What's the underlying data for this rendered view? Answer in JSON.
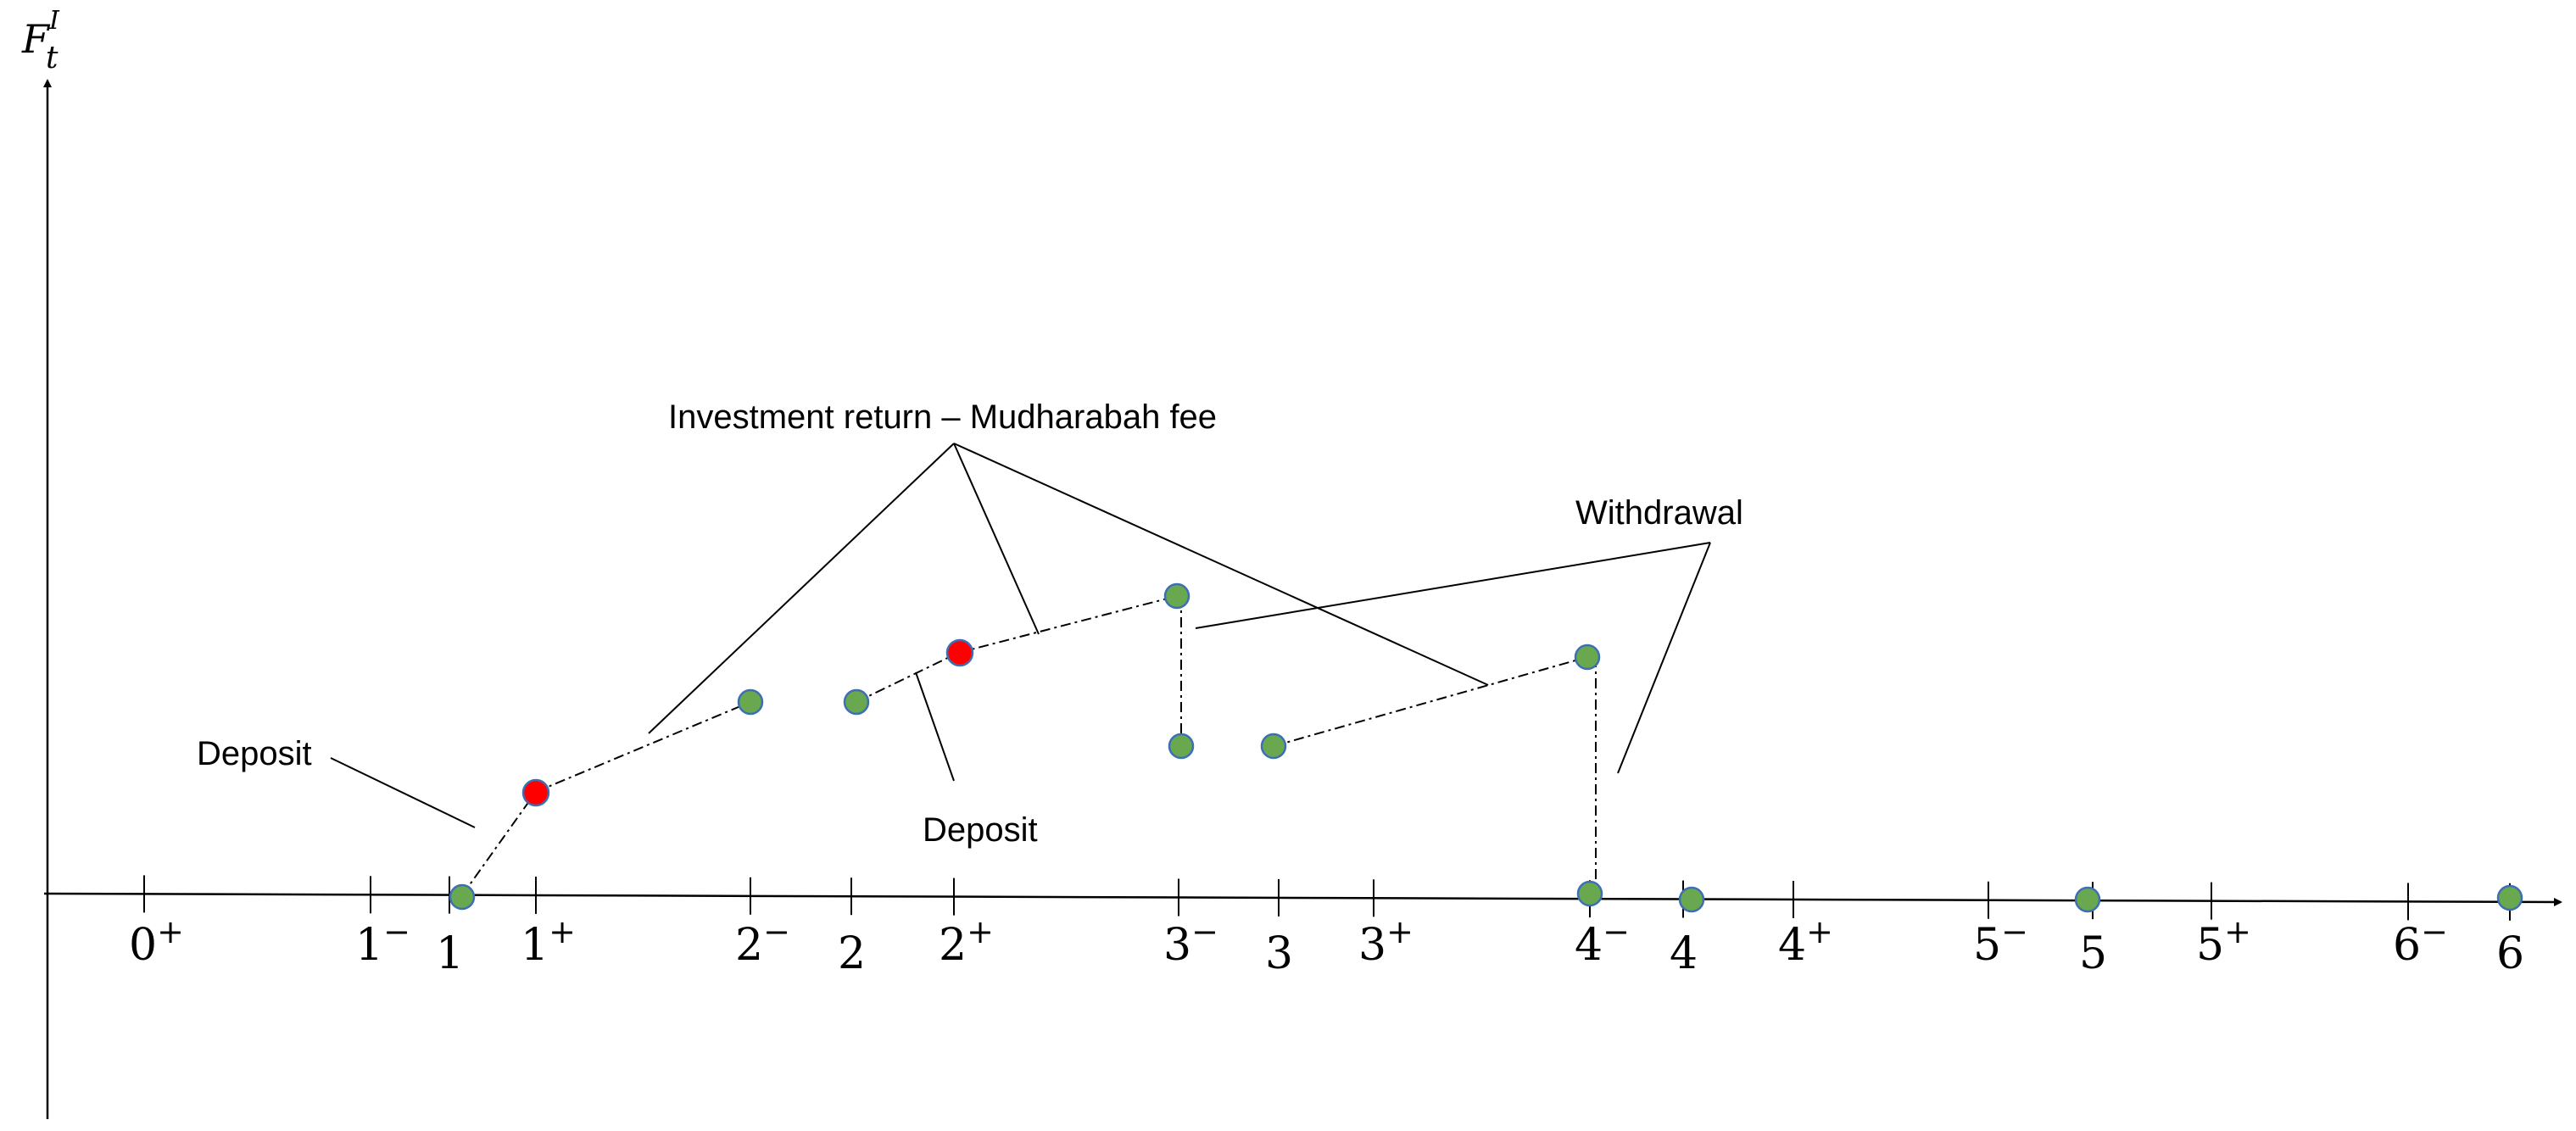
{
  "y_axis_label": {
    "base": "F",
    "sub": "t",
    "sup": "I"
  },
  "ticks": [
    {
      "base": "0",
      "sup": "+",
      "emph": false
    },
    {
      "base": "1",
      "sup": "−",
      "emph": false
    },
    {
      "base": "1",
      "sup": "",
      "emph": true
    },
    {
      "base": "1",
      "sup": "+",
      "emph": false
    },
    {
      "base": "2",
      "sup": "−",
      "emph": false
    },
    {
      "base": "2",
      "sup": "",
      "emph": true
    },
    {
      "base": "2",
      "sup": "+",
      "emph": false
    },
    {
      "base": "3",
      "sup": "−",
      "emph": false
    },
    {
      "base": "3",
      "sup": "",
      "emph": true
    },
    {
      "base": "3",
      "sup": "+",
      "emph": false
    },
    {
      "base": "4",
      "sup": "−",
      "emph": false
    },
    {
      "base": "4",
      "sup": "",
      "emph": true
    },
    {
      "base": "4",
      "sup": "+",
      "emph": false
    },
    {
      "base": "5",
      "sup": "−",
      "emph": false
    },
    {
      "base": "5",
      "sup": "",
      "emph": true
    },
    {
      "base": "5",
      "sup": "+",
      "emph": false
    },
    {
      "base": "6",
      "sup": "−",
      "emph": false
    },
    {
      "base": "6",
      "sup": "",
      "emph": true
    }
  ],
  "annotations": {
    "investment_return": "Investment return – Mudharabah fee",
    "withdrawal": "Withdrawal",
    "deposit_left": "Deposit",
    "deposit_middle": "Deposit"
  },
  "colors": {
    "point_fill": "#6aa84f",
    "point_stroke": "#3d6fb4",
    "highlight_fill": "#ff0000",
    "axis": "#000000"
  }
}
